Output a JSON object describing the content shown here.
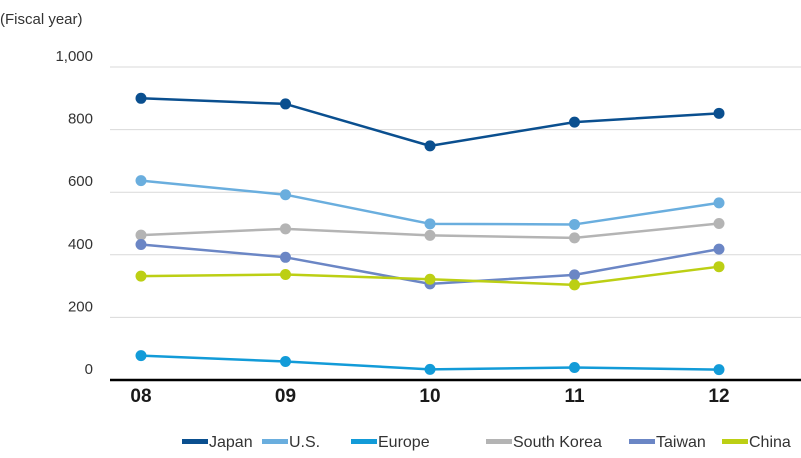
{
  "chart_data": {
    "type": "line",
    "title": "",
    "unit_note": "(Fiscal year)",
    "xlabel": "",
    "ylabel": "",
    "categories": [
      "08",
      "09",
      "10",
      "11",
      "12"
    ],
    "y_ticks": [
      "0",
      "200",
      "400",
      "600",
      "800",
      "1,000"
    ],
    "ylim": [
      0,
      1000
    ],
    "grid": true,
    "legend_position": "bottom-right",
    "series": [
      {
        "name": "Japan",
        "color": "#0a4f8f",
        "values": [
          900,
          882,
          748,
          824,
          852
        ]
      },
      {
        "name": "U.S.",
        "color": "#6aaede",
        "values": [
          637,
          592,
          499,
          497,
          566
        ]
      },
      {
        "name": "Europe",
        "color": "#129bd8",
        "values": [
          78,
          59,
          34,
          40,
          33
        ]
      },
      {
        "name": "South Korea",
        "color": "#b4b4b4",
        "values": [
          463,
          483,
          462,
          454,
          500
        ]
      },
      {
        "name": "Taiwan",
        "color": "#6b86c5",
        "values": [
          433,
          392,
          307,
          336,
          418
        ]
      },
      {
        "name": "China",
        "color": "#bccf14",
        "values": [
          332,
          337,
          322,
          304,
          362
        ]
      }
    ]
  }
}
